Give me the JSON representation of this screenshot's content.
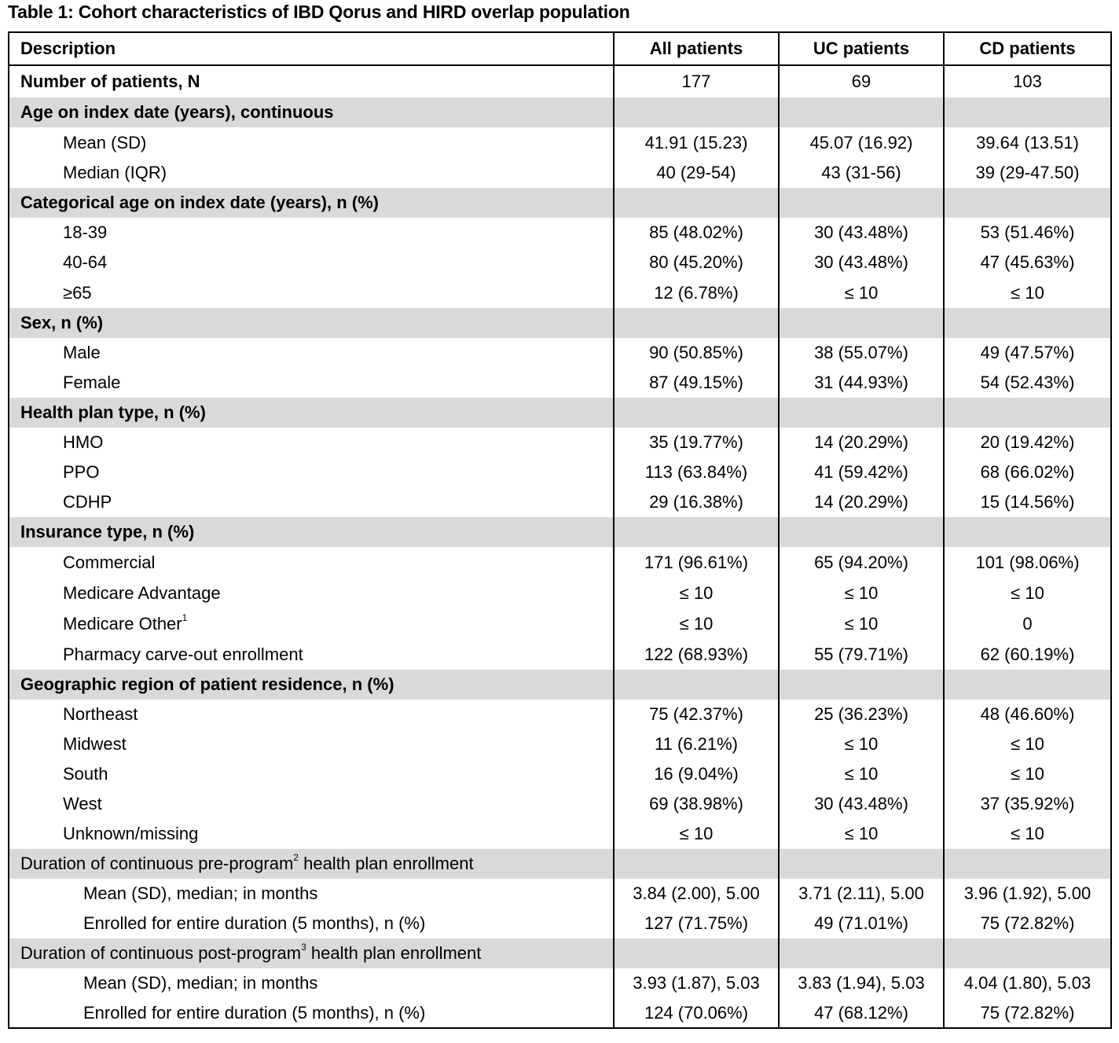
{
  "caption": "Table 1: Cohort characteristics of IBD Qorus and HIRD overlap population",
  "header": [
    "Description",
    "All patients",
    "UC patients",
    "CD patients"
  ],
  "rows": [
    {
      "type": "bold",
      "label": "Number of patients, N",
      "v": [
        "177",
        "69",
        "103"
      ]
    },
    {
      "type": "section",
      "label": "Age on index date (years), continuous"
    },
    {
      "type": "item",
      "label": "Mean (SD)",
      "v": [
        "41.91 (15.23)",
        "45.07 (16.92)",
        "39.64 (13.51)"
      ]
    },
    {
      "type": "item",
      "label": "Median (IQR)",
      "v": [
        "40 (29-54)",
        "43 (31-56)",
        "39 (29-47.50)"
      ]
    },
    {
      "type": "section",
      "label": "Categorical age on index date (years), n (%)"
    },
    {
      "type": "item",
      "label": "18-39",
      "v": [
        "85 (48.02%)",
        "30 (43.48%)",
        "53 (51.46%)"
      ]
    },
    {
      "type": "item",
      "label": "40-64",
      "v": [
        "80 (45.20%)",
        "30 (43.48%)",
        "47 (45.63%)"
      ]
    },
    {
      "type": "item",
      "label": "≥65",
      "v": [
        "12 (6.78%)",
        "≤ 10",
        "≤ 10"
      ]
    },
    {
      "type": "section",
      "label": "Sex, n (%)"
    },
    {
      "type": "item",
      "label": "Male",
      "v": [
        "90 (50.85%)",
        "38 (55.07%)",
        "49 (47.57%)"
      ]
    },
    {
      "type": "item",
      "label": "Female",
      "v": [
        "87 (49.15%)",
        "31 (44.93%)",
        "54 (52.43%)"
      ]
    },
    {
      "type": "section",
      "label": "Health plan type, n (%)"
    },
    {
      "type": "item",
      "label": "HMO",
      "v": [
        "35 (19.77%)",
        "14 (20.29%)",
        "20 (19.42%)"
      ]
    },
    {
      "type": "item",
      "label": "PPO",
      "v": [
        "113 (63.84%)",
        "41 (59.42%)",
        "68 (66.02%)"
      ]
    },
    {
      "type": "item",
      "label": "CDHP",
      "v": [
        "29 (16.38%)",
        "14 (20.29%)",
        "15 (14.56%)"
      ]
    },
    {
      "type": "section",
      "label": "Insurance type, n (%)"
    },
    {
      "type": "item",
      "label": "Commercial",
      "v": [
        "171 (96.61%)",
        "65 (94.20%)",
        "101 (98.06%)"
      ]
    },
    {
      "type": "item",
      "label": "Medicare Advantage",
      "v": [
        "≤ 10",
        "≤ 10",
        "≤ 10"
      ]
    },
    {
      "type": "item",
      "label": "Medicare Other",
      "sup": "1",
      "v": [
        "≤ 10",
        "≤ 10",
        "0"
      ]
    },
    {
      "type": "item",
      "label": "Pharmacy carve-out enrollment",
      "v": [
        "122 (68.93%)",
        "55 (79.71%)",
        "62 (60.19%)"
      ]
    },
    {
      "type": "section",
      "label": "Geographic region of patient residence, n (%)"
    },
    {
      "type": "item",
      "label": "Northeast",
      "v": [
        "75 (42.37%)",
        "25 (36.23%)",
        "48 (46.60%)"
      ]
    },
    {
      "type": "item",
      "label": "Midwest",
      "v": [
        "11 (6.21%)",
        "≤ 10",
        "≤ 10"
      ]
    },
    {
      "type": "item",
      "label": "South",
      "v": [
        "16 (9.04%)",
        "≤ 10",
        "≤ 10"
      ]
    },
    {
      "type": "item",
      "label": "West",
      "v": [
        "69 (38.98%)",
        "30 (43.48%)",
        "37 (35.92%)"
      ]
    },
    {
      "type": "item",
      "label": "Unknown/missing",
      "v": [
        "≤ 10",
        "≤ 10",
        "≤ 10"
      ]
    },
    {
      "type": "section-normal",
      "label": "Duration of continuous pre-program",
      "sup": "2",
      "label_after": " health plan enrollment"
    },
    {
      "type": "item2",
      "label": "Mean (SD), median; in months",
      "v": [
        "3.84 (2.00), 5.00",
        "3.71 (2.11), 5.00",
        "3.96 (1.92), 5.00"
      ]
    },
    {
      "type": "item2",
      "label": "Enrolled for entire duration (5 months), n (%)",
      "v": [
        "127 (71.75%)",
        "49 (71.01%)",
        "75 (72.82%)"
      ]
    },
    {
      "type": "section-normal",
      "label": "Duration of continuous post-program",
      "sup": "3",
      "label_after": " health plan enrollment"
    },
    {
      "type": "item2",
      "label": "Mean (SD), median; in months",
      "v": [
        "3.93 (1.87), 5.03",
        "3.83 (1.94), 5.03",
        "4.04 (1.80), 5.03"
      ]
    },
    {
      "type": "item2",
      "label": "Enrolled for entire duration (5 months), n (%)",
      "v": [
        "124 (70.06%)",
        "47 (68.12%)",
        "75 (72.82%)"
      ]
    }
  ]
}
